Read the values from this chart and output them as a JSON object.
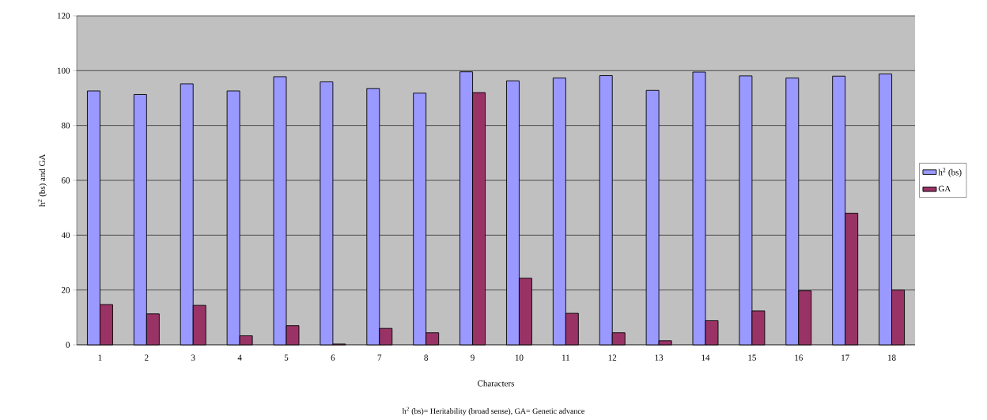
{
  "chart_data": {
    "type": "bar",
    "categories": [
      "1",
      "2",
      "3",
      "4",
      "5",
      "6",
      "7",
      "8",
      "9",
      "10",
      "11",
      "12",
      "13",
      "14",
      "15",
      "16",
      "17",
      "18"
    ],
    "series": [
      {
        "name": "h$^{2}$ (bs)",
        "color": "#9999ff",
        "values": [
          92.6,
          91.3,
          95.2,
          92.6,
          97.8,
          95.9,
          93.5,
          91.8,
          99.6,
          96.3,
          97.3,
          98.2,
          92.8,
          99.5,
          98.1,
          97.3,
          98.0,
          98.8
        ]
      },
      {
        "name": "GA",
        "color": "#993366",
        "values": [
          14.7,
          11.3,
          14.4,
          3.3,
          7.0,
          0.3,
          6.0,
          4.4,
          92.0,
          24.3,
          11.5,
          4.4,
          1.5,
          8.8,
          12.4,
          19.7,
          48.0,
          20.0
        ]
      }
    ],
    "xlabel": "Characters",
    "ylabel": "h$^{2}$ (bs) and GA",
    "annotations": [
      "h$^{2}$ (bs)= Heritability (broad sense), GA= Genetic advance"
    ],
    "ylim": [
      0,
      120
    ],
    "yticks": [
      0,
      20,
      40,
      60,
      80,
      100,
      120
    ],
    "grid": "y",
    "legend": "right"
  }
}
